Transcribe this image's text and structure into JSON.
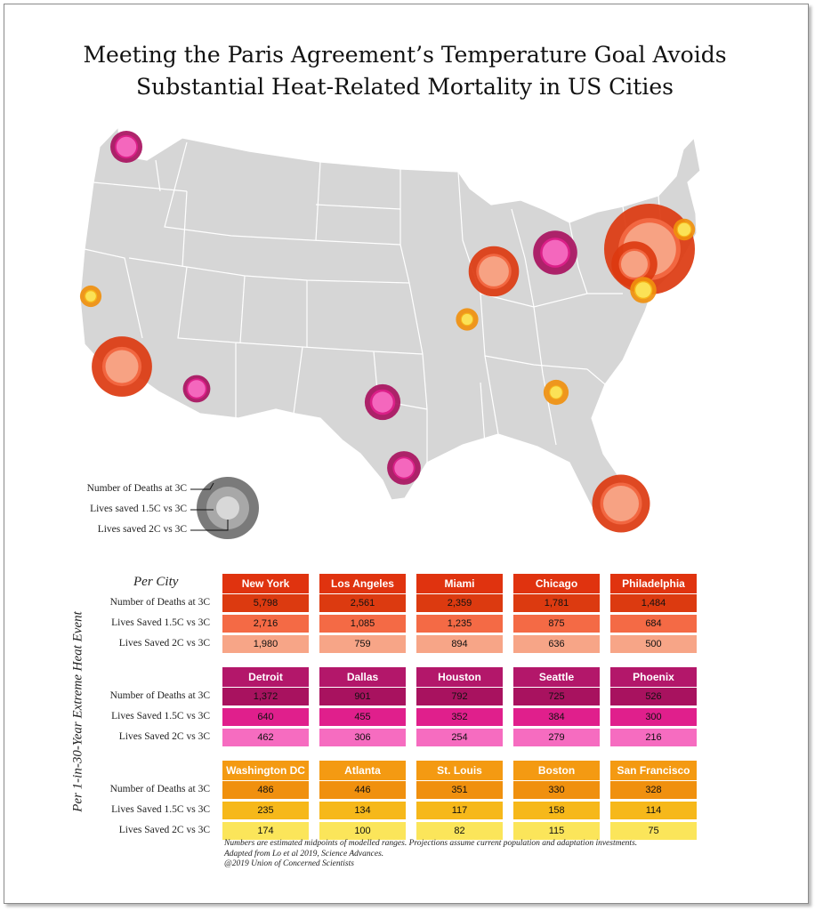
{
  "title_lines": [
    "Meeting the Paris Agreement’s Temperature Goal Avoids",
    "Substantial Heat-Related Mortality in US Cities"
  ],
  "colors": {
    "red": {
      "outer": "#dc3a10",
      "mid": "#f46a45",
      "inner": "#f7a587",
      "head": "#e0330f"
    },
    "magenta": {
      "outer": "#a8125f",
      "mid": "#e01f8c",
      "inner": "#f66cc0",
      "head": "#b3176a"
    },
    "orange": {
      "outer": "#f0900e",
      "mid": "#f6b81a",
      "inner": "#fbe55a",
      "head": "#f49a12"
    }
  },
  "legend": {
    "deaths": "Number of Deaths at 3C",
    "saved15": "Lives saved 1.5C vs 3C",
    "saved2": "Lives saved 2C vs 3C"
  },
  "table": {
    "per_city": "Per City",
    "side_label": "Per 1-in-30-Year Extreme Heat Event",
    "row_labels": [
      "Number of Deaths at 3C",
      "Lives Saved 1.5C vs 3C",
      "Lives Saved 2C vs 3C"
    ],
    "groups": [
      {
        "color": "red",
        "cities": [
          {
            "name": "New York",
            "deaths": "5,798",
            "saved15": "2,716",
            "saved2": "1,980"
          },
          {
            "name": "Los Angeles",
            "deaths": "2,561",
            "saved15": "1,085",
            "saved2": "759"
          },
          {
            "name": "Miami",
            "deaths": "2,359",
            "saved15": "1,235",
            "saved2": "894"
          },
          {
            "name": "Chicago",
            "deaths": "1,781",
            "saved15": "875",
            "saved2": "636"
          },
          {
            "name": "Philadelphia",
            "deaths": "1,484",
            "saved15": "684",
            "saved2": "500"
          }
        ]
      },
      {
        "color": "magenta",
        "cities": [
          {
            "name": "Detroit",
            "deaths": "1,372",
            "saved15": "640",
            "saved2": "462"
          },
          {
            "name": "Dallas",
            "deaths": "901",
            "saved15": "455",
            "saved2": "306"
          },
          {
            "name": "Houston",
            "deaths": "792",
            "saved15": "352",
            "saved2": "254"
          },
          {
            "name": "Seattle",
            "deaths": "725",
            "saved15": "384",
            "saved2": "279"
          },
          {
            "name": "Phoenix",
            "deaths": "526",
            "saved15": "300",
            "saved2": "216"
          }
        ]
      },
      {
        "color": "orange",
        "cities": [
          {
            "name": "Washington DC",
            "deaths": "486",
            "saved15": "235",
            "saved2": "174"
          },
          {
            "name": "Atlanta",
            "deaths": "446",
            "saved15": "134",
            "saved2": "100"
          },
          {
            "name": "St. Louis",
            "deaths": "351",
            "saved15": "117",
            "saved2": "82"
          },
          {
            "name": "Boston",
            "deaths": "330",
            "saved15": "158",
            "saved2": "115"
          },
          {
            "name": "San Francisco",
            "deaths": "328",
            "saved15": "114",
            "saved2": "75"
          }
        ]
      }
    ]
  },
  "footnote": [
    "Numbers are estimated midpoints of modelled ranges. Projections assume current population and adaptation investments.",
    "Adapted from Lo et al 2019, Science Advances.",
    "@2019 Union of Concerned Scientists"
  ],
  "chart_data": {
    "type": "bubble-map",
    "series": [
      {
        "name": "Number of Deaths at 3C",
        "values": [
          5798,
          2561,
          2359,
          1781,
          1484,
          1372,
          901,
          792,
          725,
          526,
          486,
          446,
          351,
          330,
          328
        ]
      },
      {
        "name": "Lives Saved 1.5C vs 3C",
        "values": [
          2716,
          1085,
          1235,
          875,
          684,
          640,
          455,
          352,
          384,
          300,
          235,
          134,
          117,
          158,
          114
        ]
      },
      {
        "name": "Lives Saved 2C vs 3C",
        "values": [
          1980,
          759,
          894,
          636,
          500,
          462,
          306,
          254,
          279,
          216,
          174,
          100,
          82,
          115,
          75
        ]
      }
    ],
    "categories": [
      "New York",
      "Los Angeles",
      "Miami",
      "Chicago",
      "Philadelphia",
      "Detroit",
      "Dallas",
      "Houston",
      "Seattle",
      "Phoenix",
      "Washington DC",
      "Atlanta",
      "St. Louis",
      "Boston",
      "San Francisco"
    ]
  }
}
